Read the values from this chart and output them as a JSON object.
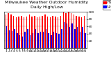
{
  "title": "Milwaukee Weather Outdoor Humidity",
  "subtitle": "Daily High/Low",
  "high_values": [
    93,
    96,
    93,
    90,
    85,
    88,
    90,
    85,
    88,
    93,
    88,
    90,
    85,
    88,
    90,
    93,
    88,
    85,
    90,
    88,
    85,
    90,
    100,
    96,
    100,
    96,
    93,
    90,
    88,
    85,
    90
  ],
  "low_values": [
    60,
    50,
    48,
    52,
    42,
    36,
    32,
    46,
    52,
    36,
    42,
    52,
    42,
    46,
    46,
    52,
    42,
    36,
    46,
    42,
    40,
    52,
    72,
    68,
    58,
    68,
    52,
    58,
    46,
    58,
    42
  ],
  "bar_width": 0.38,
  "high_color": "#ff0000",
  "low_color": "#0000ff",
  "bg_color": "#ffffff",
  "plot_bg_color": "#ffffff",
  "ylim": [
    0,
    100
  ],
  "yticks": [
    20,
    40,
    60,
    80,
    100
  ],
  "title_fontsize": 4.5,
  "tick_fontsize": 3.2,
  "legend_fontsize": 3.5
}
